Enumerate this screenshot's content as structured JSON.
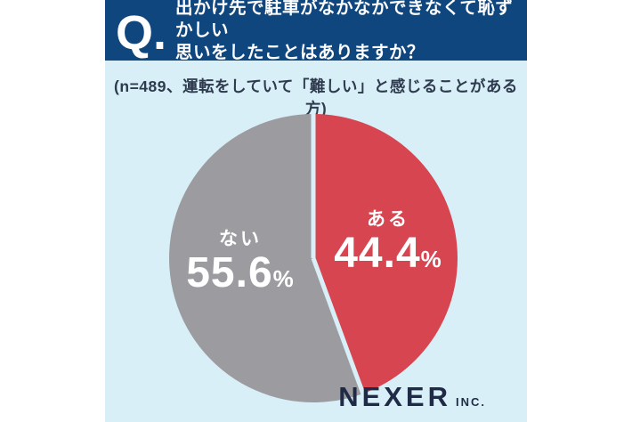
{
  "page": {
    "outer_background": "#ffffff",
    "panel_background": "#d9eff7"
  },
  "header": {
    "q_label": "Q.",
    "question_line1": "出かけ先で駐車がなかなかできなくて恥ずかしい",
    "question_line2": "思いをしたことはありますか？",
    "background": "#10467e",
    "text_color": "#ffffff"
  },
  "subtitle": {
    "text": "(n=489、運転をしていて「難しい」と感じることがある方)"
  },
  "chart_data": {
    "type": "pie",
    "title": "出かけ先で駐車がなかなかできなくて恥ずかしい思いをしたことはありますか？",
    "unit": "%",
    "start_angle_deg": 0,
    "direction": "clockwise",
    "gap_color": "#d9eff7",
    "slices": [
      {
        "label": "ある",
        "value": 44.4,
        "display": "44.4",
        "color": "#d64550",
        "text_color": "#ffffff"
      },
      {
        "label": "ない",
        "value": 55.6,
        "display": "55.6",
        "color": "#9c9ca0",
        "text_color": "#ffffff"
      }
    ]
  },
  "logo": {
    "name": "NEXER",
    "suffix": "INC."
  }
}
